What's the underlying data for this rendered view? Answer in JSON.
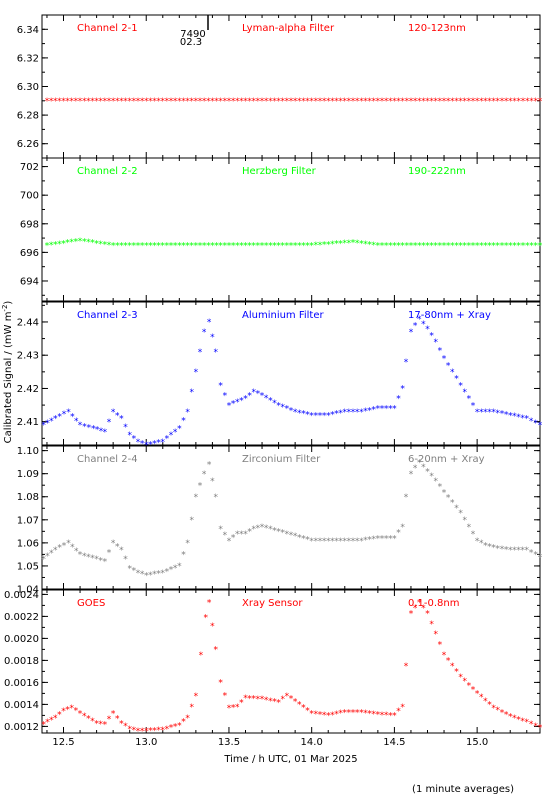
{
  "figure": {
    "ylabel": "Calibrated Signal / (mW m",
    "ylabel_sup": "-2",
    "ylabel_tail": ")",
    "xlabel": "Time / h UTC, 01 Mar 2025",
    "footnote": "(1 minute averages)",
    "marker_text_1": "7490",
    "marker_text_2": "02.3"
  },
  "colors": {
    "red": "#ff0000",
    "green": "#00ff00",
    "blue": "#0000ff",
    "gray": "#808080",
    "axis": "#000000"
  },
  "chart_data": [
    {
      "type": "scatter",
      "labels": [
        "Channel 2-1",
        "Lyman-alpha Filter",
        "120-123nm"
      ],
      "color": "#ff0000",
      "x_ticks": [
        "12.5",
        "13.0",
        "13.5",
        "14.0",
        "14.5",
        "15.0"
      ],
      "y_ticks": [
        "6.26",
        "6.28",
        "6.30",
        "6.32",
        "6.34"
      ],
      "xlim": [
        12.37,
        15.38
      ],
      "ylim": [
        6.25,
        6.35
      ],
      "series": [
        {
          "x": [
            12.4,
            12.6,
            12.8,
            13.0,
            13.2,
            13.4,
            13.6,
            13.8,
            14.0,
            14.2,
            14.4,
            14.6,
            14.8,
            15.0,
            15.2,
            15.38
          ],
          "y": [
            6.29,
            6.29,
            6.29,
            6.29,
            6.29,
            6.29,
            6.29,
            6.29,
            6.29,
            6.29,
            6.29,
            6.29,
            6.29,
            6.29,
            6.29,
            6.29
          ]
        }
      ]
    },
    {
      "type": "scatter",
      "labels": [
        "Channel 2-2",
        "Herzberg Filter",
        "190-222nm"
      ],
      "color": "#00ff00",
      "x_ticks": [
        "12.5",
        "13.0",
        "13.5",
        "14.0",
        "14.5",
        "15.0"
      ],
      "y_ticks": [
        "694",
        "696",
        "698",
        "700",
        "702"
      ],
      "xlim": [
        12.37,
        15.38
      ],
      "ylim": [
        692.6,
        702.6
      ],
      "series": [
        {
          "x": [
            12.4,
            12.6,
            12.8,
            13.0,
            13.2,
            13.4,
            13.6,
            13.8,
            14.0,
            14.25,
            14.4,
            14.6,
            14.8,
            15.0,
            15.2,
            15.38
          ],
          "y": [
            696.5,
            696.8,
            696.5,
            696.5,
            696.5,
            696.5,
            696.5,
            696.5,
            696.5,
            696.7,
            696.5,
            696.5,
            696.5,
            696.5,
            696.5,
            696.5
          ]
        }
      ]
    },
    {
      "type": "scatter",
      "labels": [
        "Channel 2-3",
        "Aluminium Filter",
        "17-80nm + Xray"
      ],
      "color": "#0000ff",
      "x_ticks": [
        "12.5",
        "13.0",
        "13.5",
        "14.0",
        "14.5",
        "15.0"
      ],
      "y_ticks": [
        "2.41",
        "2.42",
        "2.43",
        "2.44"
      ],
      "xlim": [
        12.37,
        15.38
      ],
      "ylim": [
        2.403,
        2.446
      ],
      "series": [
        {
          "x": [
            12.38,
            12.45,
            12.53,
            12.6,
            12.68,
            12.75,
            12.8,
            12.85,
            12.9,
            12.95,
            13.0,
            13.1,
            13.2,
            13.25,
            13.3,
            13.35,
            13.38,
            13.42,
            13.45,
            13.5,
            13.55,
            13.6,
            13.65,
            13.7,
            13.8,
            13.9,
            14.0,
            14.1,
            14.2,
            14.3,
            14.4,
            14.5,
            14.55,
            14.57,
            14.6,
            14.65,
            14.7,
            14.75,
            14.8,
            14.9,
            15.0,
            15.05,
            15.1,
            15.2,
            15.3,
            15.38
          ],
          "y": [
            2.409,
            2.411,
            2.413,
            2.409,
            2.408,
            2.407,
            2.413,
            2.411,
            2.406,
            2.404,
            2.403,
            2.404,
            2.408,
            2.413,
            2.425,
            2.437,
            2.44,
            2.431,
            2.421,
            2.415,
            2.416,
            2.417,
            2.419,
            2.418,
            2.415,
            2.413,
            2.412,
            2.412,
            2.413,
            2.413,
            2.414,
            2.414,
            2.42,
            2.428,
            2.437,
            2.441,
            2.438,
            2.434,
            2.429,
            2.421,
            2.413,
            2.413,
            2.413,
            2.412,
            2.411,
            2.409
          ]
        }
      ]
    },
    {
      "type": "scatter",
      "labels": [
        "Channel 2-4",
        "Zirconium Filter",
        "6-20nm + Xray"
      ],
      "color": "#808080",
      "x_ticks": [
        "12.5",
        "13.0",
        "13.5",
        "14.0",
        "14.5",
        "15.0"
      ],
      "y_ticks": [
        "1.04",
        "1.05",
        "1.06",
        "1.07",
        "1.08",
        "1.09",
        "1.10"
      ],
      "xlim": [
        12.37,
        15.38
      ],
      "ylim": [
        1.04,
        1.102
      ],
      "series": [
        {
          "x": [
            12.38,
            12.45,
            12.53,
            12.6,
            12.7,
            12.75,
            12.8,
            12.85,
            12.9,
            12.95,
            13.0,
            13.1,
            13.2,
            13.25,
            13.3,
            13.35,
            13.38,
            13.42,
            13.45,
            13.5,
            13.55,
            13.6,
            13.65,
            13.7,
            13.8,
            13.9,
            14.0,
            14.1,
            14.2,
            14.3,
            14.4,
            14.5,
            14.55,
            14.57,
            14.6,
            14.65,
            14.7,
            14.75,
            14.8,
            14.9,
            15.0,
            15.05,
            15.1,
            15.2,
            15.3,
            15.38
          ],
          "y": [
            1.053,
            1.057,
            1.06,
            1.055,
            1.053,
            1.052,
            1.06,
            1.057,
            1.049,
            1.047,
            1.046,
            1.047,
            1.05,
            1.06,
            1.08,
            1.09,
            1.094,
            1.08,
            1.066,
            1.061,
            1.064,
            1.064,
            1.066,
            1.067,
            1.065,
            1.063,
            1.061,
            1.061,
            1.061,
            1.061,
            1.062,
            1.062,
            1.067,
            1.08,
            1.09,
            1.095,
            1.091,
            1.087,
            1.082,
            1.073,
            1.061,
            1.059,
            1.058,
            1.057,
            1.057,
            1.054
          ]
        }
      ]
    },
    {
      "type": "scatter",
      "labels": [
        "GOES",
        "Xray Sensor",
        "0.1-0.8nm"
      ],
      "color": "#ff0000",
      "x_ticks": [
        "12.5",
        "13.0",
        "13.5",
        "14.0",
        "14.5",
        "15.0"
      ],
      "y_ticks": [
        "0.0012",
        "0.0014",
        "0.0016",
        "0.0018",
        "0.0020",
        "0.0022",
        "0.0024"
      ],
      "xlim": [
        12.37,
        15.38
      ],
      "ylim": [
        0.00114,
        0.00244
      ],
      "series": [
        {
          "x": [
            12.38,
            12.45,
            12.5,
            12.55,
            12.6,
            12.7,
            12.75,
            12.8,
            12.85,
            12.9,
            12.95,
            13.0,
            13.1,
            13.2,
            13.25,
            13.3,
            13.33,
            13.36,
            13.38,
            13.42,
            13.45,
            13.5,
            13.55,
            13.6,
            13.7,
            13.8,
            13.85,
            13.9,
            14.0,
            14.1,
            14.2,
            14.3,
            14.4,
            14.5,
            14.55,
            14.57,
            14.6,
            14.65,
            14.7,
            14.75,
            14.8,
            14.9,
            15.0,
            15.1,
            15.2,
            15.3,
            15.38
          ],
          "y": [
            0.00122,
            0.00128,
            0.00134,
            0.00137,
            0.00132,
            0.00123,
            0.00122,
            0.00132,
            0.00123,
            0.00118,
            0.00116,
            0.00116,
            0.00117,
            0.00121,
            0.00128,
            0.00148,
            0.00185,
            0.00219,
            0.00233,
            0.0019,
            0.0016,
            0.00137,
            0.00138,
            0.00146,
            0.00145,
            0.00142,
            0.00148,
            0.00143,
            0.00132,
            0.0013,
            0.00133,
            0.00133,
            0.00131,
            0.0013,
            0.00138,
            0.00175,
            0.00223,
            0.00233,
            0.00223,
            0.00204,
            0.00185,
            0.00165,
            0.0015,
            0.00137,
            0.00129,
            0.00124,
            0.00119
          ]
        }
      ]
    }
  ]
}
